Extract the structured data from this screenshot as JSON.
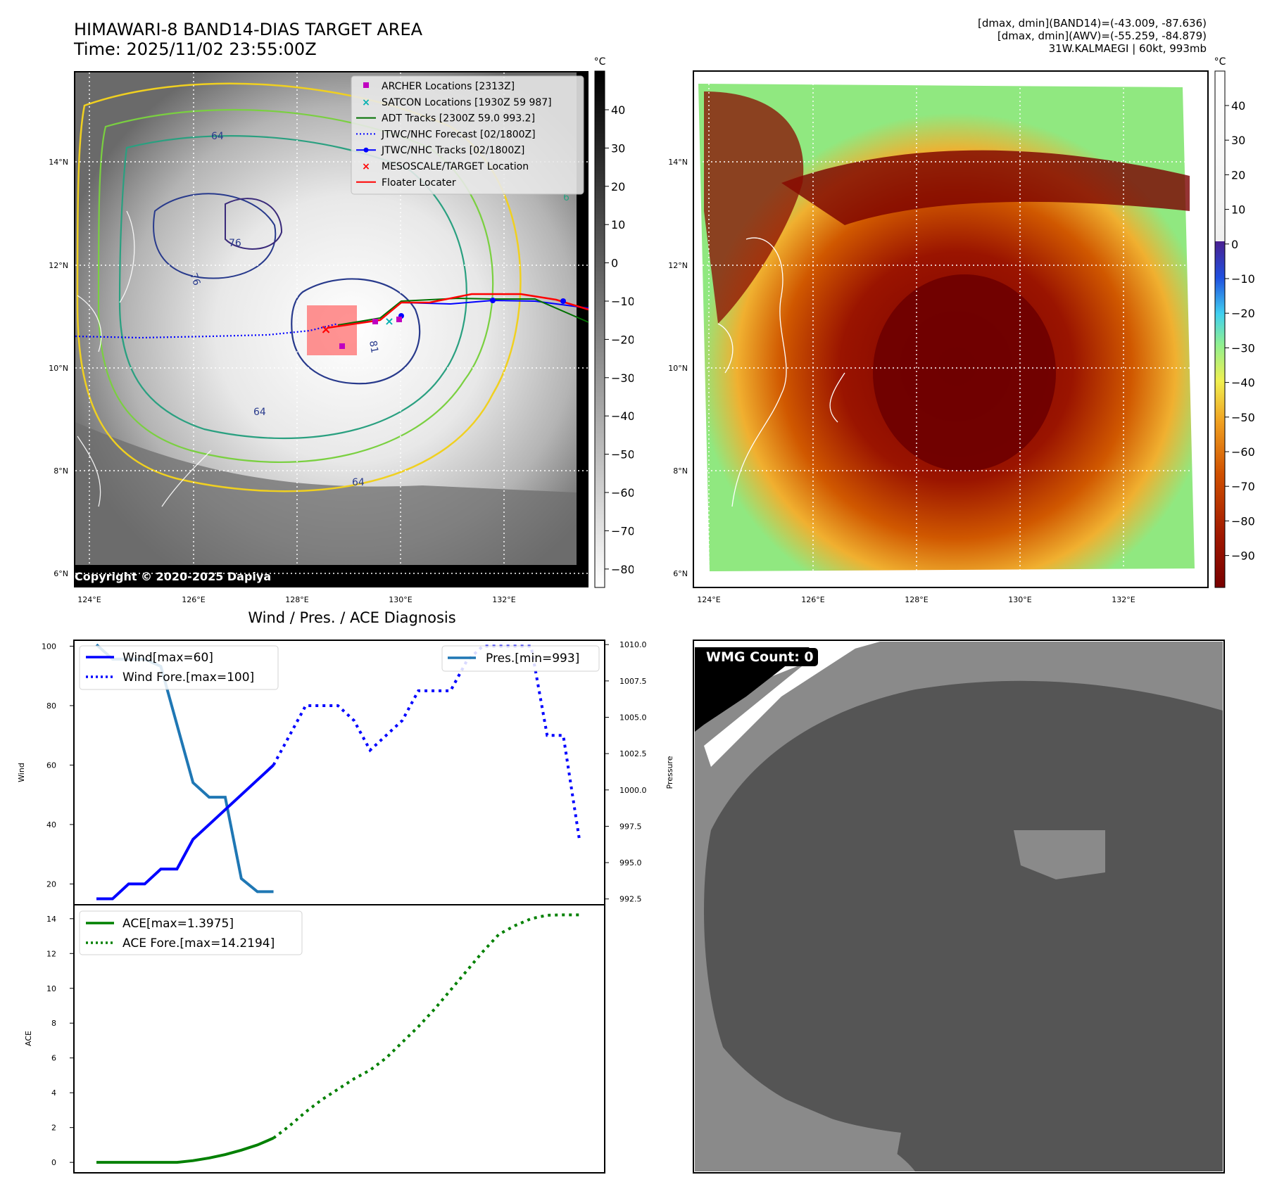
{
  "header": {
    "title_line1": "HIMAWARI-8 BAND14-DIAS TARGET AREA",
    "title_line2": "Time: 2025/11/02 23:55:00Z",
    "info_line1": "[dmax, dmin](BAND14)=(-43.009, -87.636)",
    "info_line2": "[dmax, dmin](AWV)=(-55.259, -84.879)",
    "info_line3": "31W.KALMAEGI | 60kt, 993mb"
  },
  "copyright": "Copyright © 2020-2025 Dapiya",
  "unit_label": "°C",
  "map": {
    "lon_ticks": [
      "124°E",
      "126°E",
      "128°E",
      "130°E",
      "132°E"
    ],
    "lat_ticks": [
      "14°N",
      "12°N",
      "10°N",
      "8°N",
      "6°N"
    ],
    "colorbar_ir_ticks": [
      "40",
      "30",
      "20",
      "10",
      "0",
      "−10",
      "−20",
      "−30",
      "−40",
      "−50",
      "−60",
      "−70",
      "−80"
    ],
    "colorbar_awv_ticks": [
      "40",
      "30",
      "20",
      "10",
      "0",
      "−10",
      "−20",
      "−30",
      "−40",
      "−50",
      "−60",
      "−70",
      "−80",
      "−90"
    ],
    "contour_labels": [
      "64",
      "76",
      "76",
      "81",
      "64",
      "64",
      "6"
    ],
    "legend": [
      {
        "label": "ARCHER Locations [2313Z]",
        "color": "#c000c0",
        "marker": "square"
      },
      {
        "label": "SATCON Locations [1930Z 59 987]",
        "color": "#00b0b0",
        "marker": "x"
      },
      {
        "label": "ADT Tracks [2300Z 59.0 993.2]",
        "color": "#007000",
        "marker": "line"
      },
      {
        "label": "JTWC/NHC Forecast [02/1800Z]",
        "color": "#0000ff",
        "marker": "dotted"
      },
      {
        "label": "JTWC/NHC Tracks [02/1800Z]",
        "color": "#0000ff",
        "marker": "line-dot"
      },
      {
        "label": "MESOSCALE/TARGET Location",
        "color": "#ff0000",
        "marker": "x"
      },
      {
        "label": "Floater Locater",
        "color": "#ff0000",
        "marker": "line"
      }
    ]
  },
  "diag_title": "Wind / Pres. / ACE Diagnosis",
  "wmg_label": "WMG Count: 0",
  "chart_data": [
    {
      "type": "line",
      "title": "Wind / Pres. / ACE Diagnosis",
      "xlabel": "",
      "ylabel": "Wind",
      "y2label": "Pressure",
      "ylim": [
        13,
        102
      ],
      "y2lim": [
        992.1,
        1010.3
      ],
      "yticks": [
        20,
        40,
        60,
        80,
        100
      ],
      "y2ticks": [
        992.5,
        995.0,
        997.5,
        1000.0,
        1002.5,
        1005.0,
        1007.5,
        1010.0
      ],
      "y2tick_labels": [
        "992.5",
        "995.0",
        "997.5",
        "1000.0",
        "1002.5",
        "1005.0",
        "1007.5",
        "1010.0"
      ],
      "series": [
        {
          "name": "Wind[max=60]",
          "axis": "left",
          "style": "solid",
          "color": "#0000ff",
          "x": [
            0,
            1,
            2,
            3,
            4,
            5,
            6,
            7,
            8,
            9,
            10,
            11
          ],
          "values": [
            15,
            15,
            20,
            20,
            25,
            25,
            35,
            40,
            45,
            50,
            55,
            60
          ]
        },
        {
          "name": "Wind Fore.[max=100]",
          "axis": "left",
          "style": "dotted",
          "color": "#0000ff",
          "x": [
            11,
            12,
            13,
            14,
            15,
            16,
            17,
            18,
            19,
            20,
            21,
            22,
            23,
            24,
            25,
            26,
            27,
            28,
            29,
            30
          ],
          "values": [
            60,
            70,
            80,
            80,
            80,
            75,
            65,
            70,
            75,
            85,
            85,
            85,
            95,
            100,
            100,
            100,
            100,
            70,
            70,
            35
          ]
        },
        {
          "name": "Pres.[min=993]",
          "axis": "right",
          "style": "solid",
          "color": "#1f77b4",
          "x": [
            0,
            1,
            2,
            3,
            4,
            5,
            6,
            7,
            8,
            9,
            10,
            11
          ],
          "values": [
            1010,
            1009,
            1009,
            1009,
            1008.5,
            1004.5,
            1000.5,
            999.5,
            999.5,
            993.9,
            993,
            993
          ]
        }
      ]
    },
    {
      "type": "line",
      "ylabel": "ACE",
      "ylim": [
        -0.6,
        14.8
      ],
      "yticks": [
        0,
        2,
        4,
        6,
        8,
        10,
        12,
        14
      ],
      "series": [
        {
          "name": "ACE[max=1.3975]",
          "style": "solid",
          "color": "#008000",
          "x": [
            0,
            1,
            2,
            3,
            4,
            5,
            6,
            7,
            8,
            9,
            10,
            11
          ],
          "values": [
            0,
            0,
            0,
            0,
            0,
            0,
            0.1,
            0.25,
            0.45,
            0.7,
            1.0,
            1.3975
          ]
        },
        {
          "name": "ACE Fore.[max=14.2194]",
          "style": "dotted",
          "color": "#008000",
          "x": [
            11,
            12,
            13,
            14,
            15,
            16,
            17,
            18,
            19,
            20,
            21,
            22,
            23,
            24,
            25,
            26,
            27,
            28,
            29,
            30
          ],
          "values": [
            1.3975,
            2.1,
            2.9,
            3.6,
            4.2,
            4.8,
            5.3,
            6.0,
            6.9,
            7.8,
            8.8,
            9.9,
            11.0,
            12.1,
            13.1,
            13.6,
            14.0,
            14.2,
            14.2194,
            14.2194
          ]
        }
      ]
    }
  ]
}
